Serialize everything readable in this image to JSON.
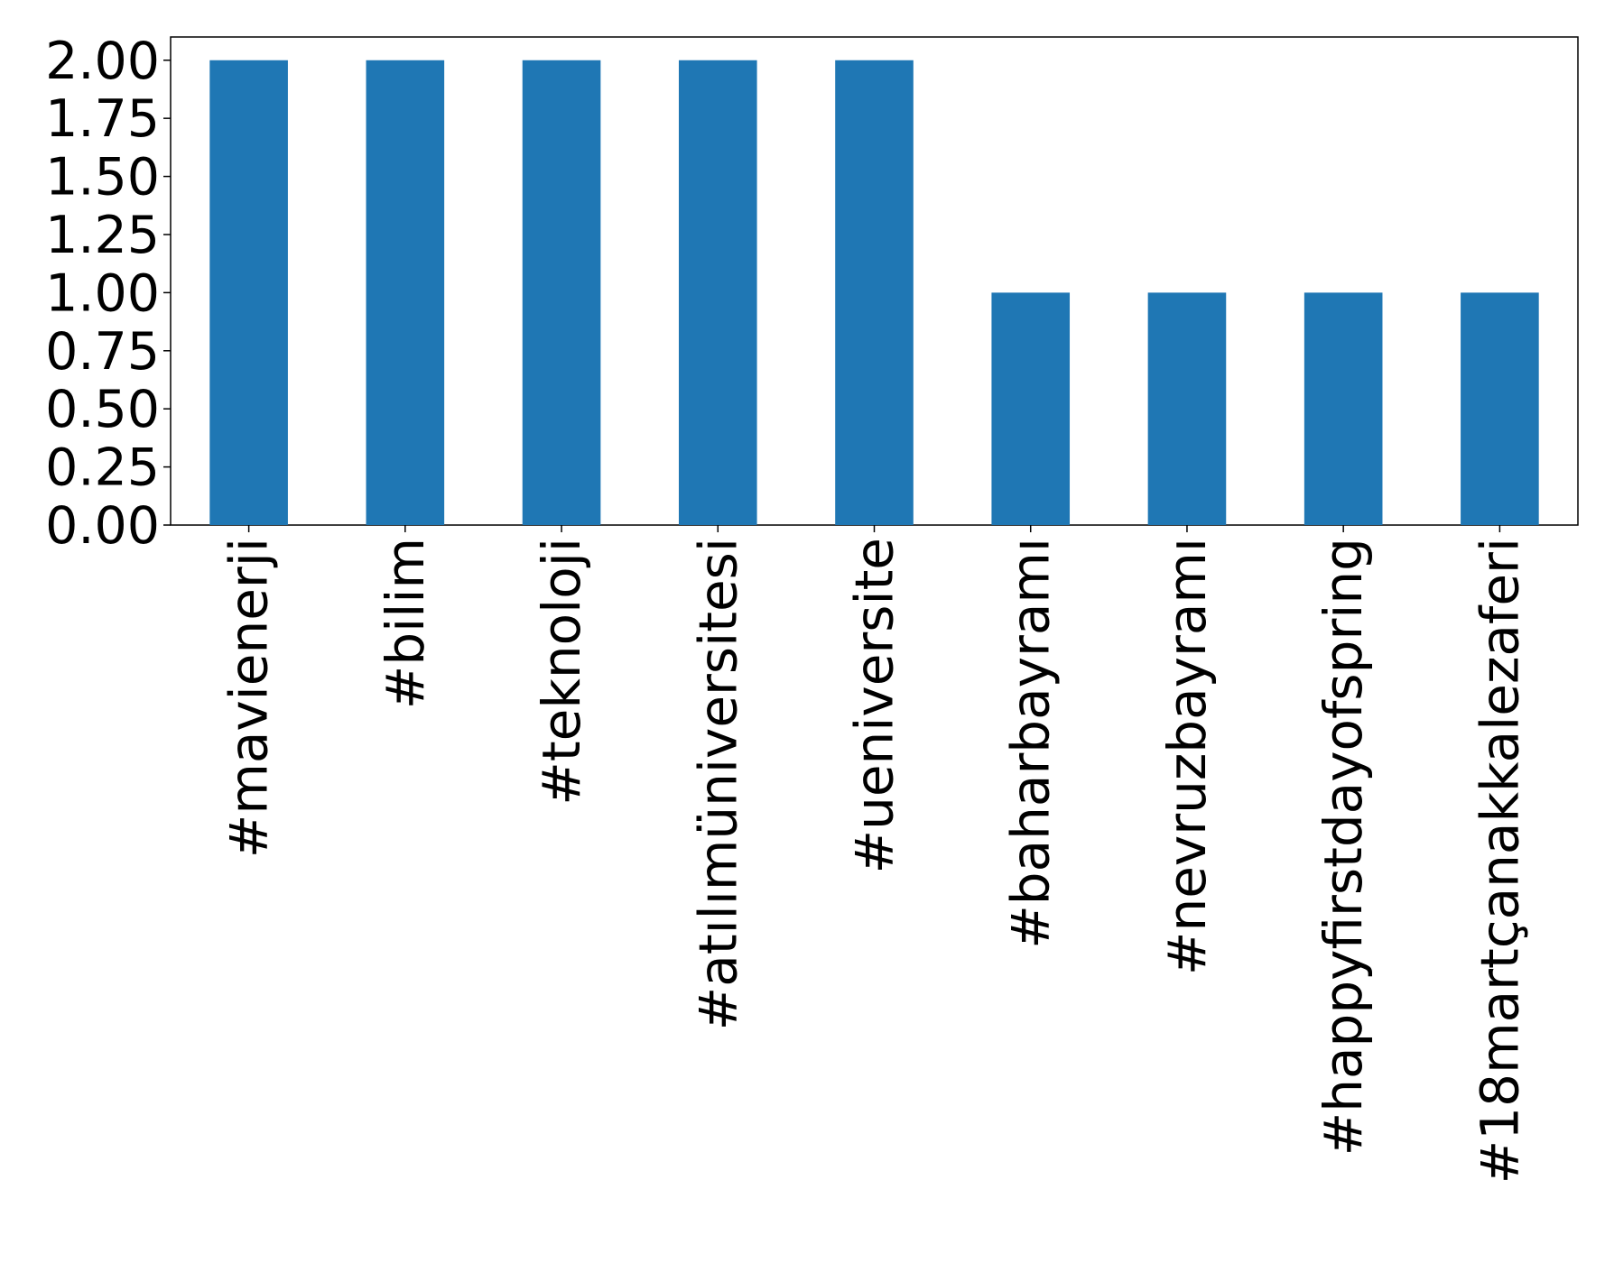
{
  "chart_data": {
    "type": "bar",
    "categories": [
      "#mavienerji",
      "#bilim",
      "#teknoloji",
      "#atılımüniversitesi",
      "#ueniversite",
      "#baharbayramı",
      "#nevruzbayramı",
      "#happyfirstdayofspring",
      "#18martçanakkalezaferi"
    ],
    "values": [
      2,
      2,
      2,
      2,
      2,
      1,
      1,
      1,
      1
    ],
    "color": "#1f77b4",
    "ylim": [
      0,
      2.1
    ],
    "yticks": [
      {
        "value": 0,
        "label": "0.00"
      },
      {
        "value": 0.25,
        "label": "0.25"
      },
      {
        "value": 0.5,
        "label": "0.50"
      },
      {
        "value": 0.75,
        "label": "0.75"
      },
      {
        "value": 1,
        "label": "1.00"
      },
      {
        "value": 1.25,
        "label": "1.25"
      },
      {
        "value": 1.5,
        "label": "1.50"
      },
      {
        "value": 1.75,
        "label": "1.75"
      },
      {
        "value": 2,
        "label": "2.00"
      }
    ],
    "grid": false
  }
}
